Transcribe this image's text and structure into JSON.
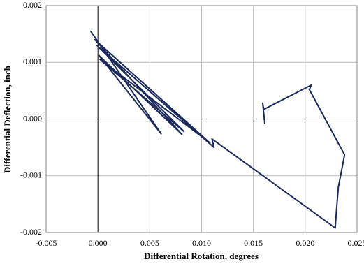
{
  "chart_data": {
    "type": "line",
    "x_label": "Differential Rotation, degrees",
    "y_label": "Differential Deflection, inch",
    "series": [
      {
        "color": "#1b2a5a",
        "x": [
          -0.0007,
          0.0061,
          0.0001,
          0.0081,
          -0.0003,
          0.0108,
          0.0002,
          0.0083,
          -0.0001,
          0.0112,
          0.011,
          0.0229,
          0.023,
          0.0232,
          0.0238,
          0.0204,
          0.0206,
          0.016,
          0.0159,
          0.0161
        ],
        "values": [
          0.00155,
          -0.00026,
          0.00112,
          -0.00027,
          0.0014,
          -0.00042,
          0.00105,
          -0.00022,
          0.0013,
          -0.0005,
          -0.00035,
          -0.00192,
          -0.00165,
          -0.0012,
          -0.00063,
          0.00052,
          0.0006,
          0.00017,
          0.00028,
          -8e-05
        ]
      }
    ],
    "xlim": [
      -0.005,
      0.025
    ],
    "xticks": [
      -0.005,
      {
        "value": 0,
        "label": "0.000"
      },
      0.005,
      {
        "value": 0.01,
        "label": "0.010"
      },
      0.015,
      {
        "value": 0.02,
        "label": "0.020"
      },
      0.025
    ],
    "ylim": [
      -0.002,
      0.002
    ],
    "yticks": [
      -0.002,
      -0.001,
      {
        "value": 0,
        "label": "0.000"
      },
      0.001,
      0.002
    ],
    "grid": true
  }
}
